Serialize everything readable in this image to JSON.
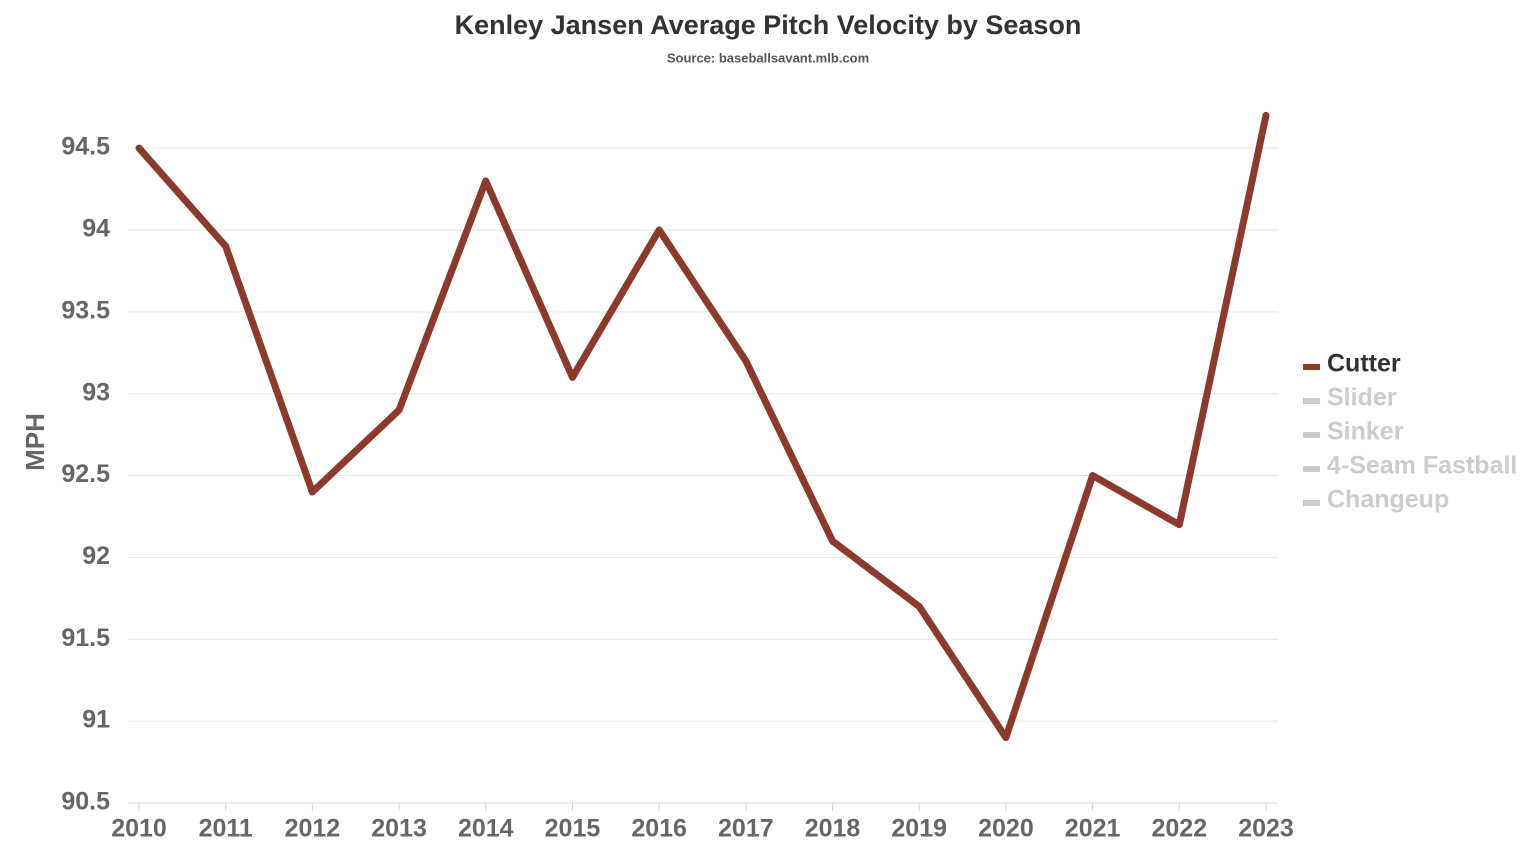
{
  "chart_data": {
    "type": "line",
    "title": "Kenley Jansen Average Pitch Velocity by Season",
    "subtitle": "Source: baseballsavant.mlb.com",
    "y_label": "MPH",
    "categories": [
      "2010",
      "2011",
      "2012",
      "2013",
      "2014",
      "2015",
      "2016",
      "2017",
      "2018",
      "2019",
      "2020",
      "2021",
      "2022",
      "2023"
    ],
    "series": [
      {
        "name": "Cutter",
        "color": "#8b3a2b",
        "values": [
          94.5,
          93.9,
          92.4,
          92.9,
          94.3,
          93.1,
          94.0,
          93.2,
          92.1,
          91.7,
          90.9,
          92.5,
          92.2,
          94.7
        ]
      },
      {
        "name": "Slider",
        "color": "#cccccc",
        "hidden": true,
        "values": [
          null,
          null,
          null,
          null,
          null,
          null,
          null,
          null,
          null,
          null,
          null,
          null,
          null,
          null
        ]
      },
      {
        "name": "Sinker",
        "color": "#cccccc",
        "hidden": true,
        "values": [
          null,
          null,
          null,
          null,
          null,
          null,
          null,
          null,
          null,
          null,
          null,
          null,
          null,
          null
        ]
      },
      {
        "name": "4-Seam Fastball",
        "color": "#cccccc",
        "hidden": true,
        "values": [
          null,
          null,
          null,
          null,
          null,
          null,
          null,
          null,
          null,
          null,
          null,
          null,
          null,
          null
        ]
      },
      {
        "name": "Changeup",
        "color": "#cccccc",
        "hidden": true,
        "values": [
          null,
          null,
          null,
          null,
          null,
          null,
          null,
          null,
          null,
          null,
          null,
          null,
          null,
          null
        ]
      }
    ],
    "ylim": [
      90.5,
      94.8
    ],
    "yticks": [
      90.5,
      91,
      91.5,
      92,
      92.5,
      93,
      93.5,
      94,
      94.5
    ],
    "grid": true,
    "legend": "right"
  }
}
